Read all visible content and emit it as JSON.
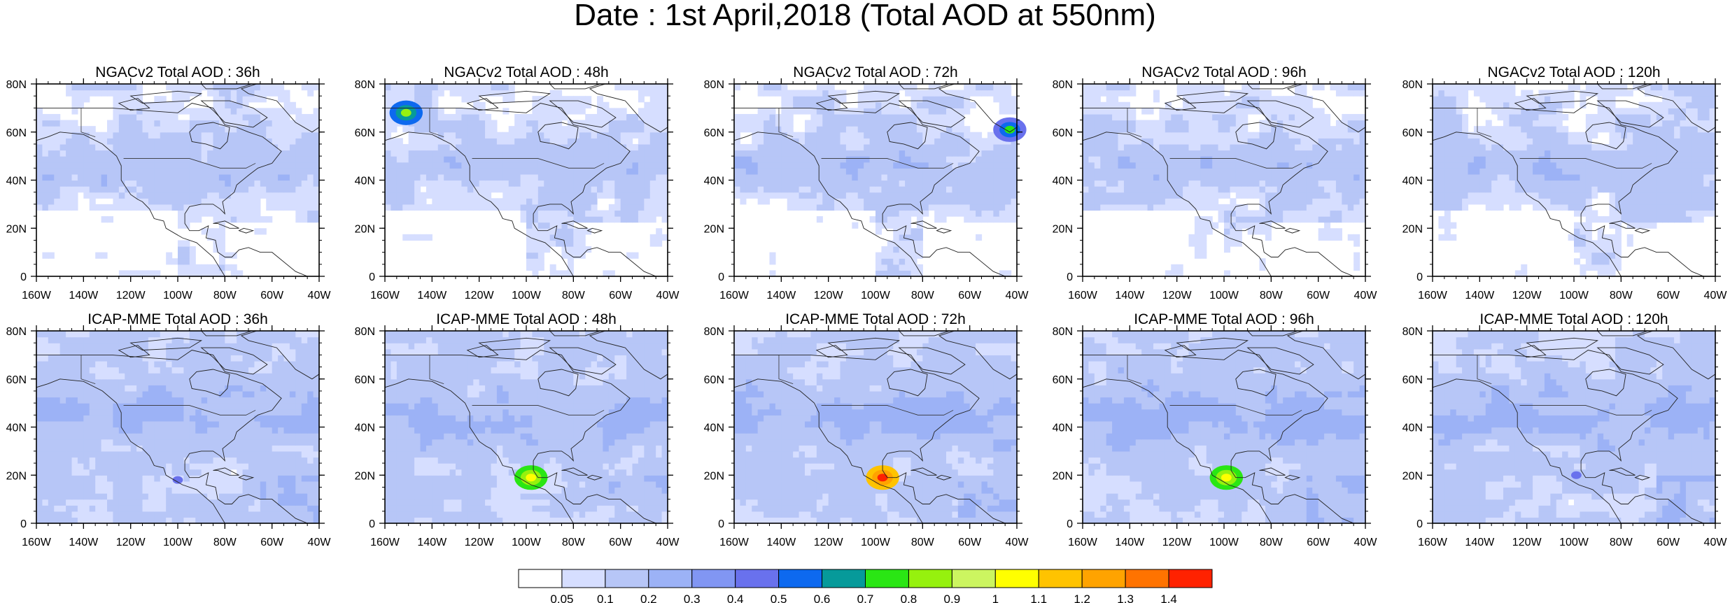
{
  "title": "Date : 1st April,2018 (Total AOD at 550nm)",
  "axes": {
    "x_ticks": [
      "160W",
      "140W",
      "120W",
      "100W",
      "80W",
      "60W",
      "40W"
    ],
    "y_ticks": [
      "0",
      "20N",
      "40N",
      "60N",
      "80N"
    ],
    "lon_range": [
      -160,
      -40
    ],
    "lat_range": [
      0,
      80
    ]
  },
  "rows": [
    {
      "model": "NGACv2",
      "panels": [
        {
          "title": "NGACv2 Total AOD : 36h",
          "hotspots": []
        },
        {
          "title": "NGACv2 Total AOD : 48h",
          "hotspots": [
            {
              "lon": -151,
              "lat": 68,
              "level": 0.8
            }
          ]
        },
        {
          "title": "NGACv2 Total AOD : 72h",
          "hotspots": [
            {
              "lon": -43,
              "lat": 61,
              "level": 0.7
            }
          ]
        },
        {
          "title": "NGACv2 Total AOD : 96h",
          "hotspots": []
        },
        {
          "title": "NGACv2 Total AOD : 120h",
          "hotspots": []
        }
      ]
    },
    {
      "model": "ICAP-MME",
      "panels": [
        {
          "title": "ICAP-MME Total AOD : 36h",
          "hotspots": [
            {
              "lon": -100,
              "lat": 18,
              "level": 0.4
            }
          ]
        },
        {
          "title": "ICAP-MME Total AOD : 48h",
          "hotspots": [
            {
              "lon": -98,
              "lat": 19,
              "level": 1.0
            }
          ]
        },
        {
          "title": "ICAP-MME Total AOD : 72h",
          "hotspots": [
            {
              "lon": -97,
              "lat": 19,
              "level": 1.4
            }
          ]
        },
        {
          "title": "ICAP-MME Total AOD : 96h",
          "hotspots": [
            {
              "lon": -99,
              "lat": 19,
              "level": 1.0
            }
          ]
        },
        {
          "title": "ICAP-MME Total AOD : 120h",
          "hotspots": [
            {
              "lon": -99,
              "lat": 20,
              "level": 0.4
            }
          ]
        }
      ]
    }
  ],
  "colorbar": {
    "colors": [
      "#ffffff",
      "#d6deff",
      "#b7c6f7",
      "#9cb2f6",
      "#8196f3",
      "#6971ed",
      "#0d69ef",
      "#069a9a",
      "#2ae614",
      "#96f10e",
      "#ccf560",
      "#ffff00",
      "#ffc300",
      "#ffa300",
      "#ff7300",
      "#ff2200"
    ],
    "labels": [
      "0.05",
      "0.1",
      "0.2",
      "0.3",
      "0.4",
      "0.5",
      "0.6",
      "0.7",
      "0.8",
      "0.9",
      "1",
      "1.1",
      "1.2",
      "1.3",
      "1.4"
    ]
  }
}
